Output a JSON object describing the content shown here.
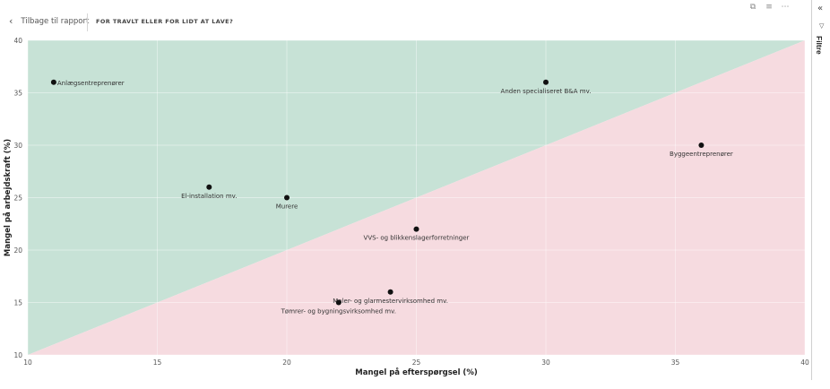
{
  "nav": {
    "back_label": "Tilbage til rapport",
    "page_title": "FOR TRAVLT ELLER FOR LIDT AT LAVE?"
  },
  "visual_header": {
    "icons": [
      "copy-icon",
      "filter-icon",
      "more-options-icon"
    ]
  },
  "filter_pane": {
    "label": "Filtre",
    "collapse_icon": "double-chevron-icon",
    "funnel_icon": "funnel-icon"
  },
  "colors": {
    "upper_region": "#c7e2d6",
    "lower_region": "#f6dbe0",
    "point": "#111111"
  },
  "chart_data": {
    "type": "scatter",
    "title": "",
    "xlabel": "Mangel på efterspørgsel (%)",
    "ylabel": "Mangel på arbejdskraft (%)",
    "xlim": [
      10,
      40
    ],
    "ylim": [
      10,
      40
    ],
    "xticks": [
      10,
      15,
      20,
      25,
      30,
      35,
      40
    ],
    "yticks": [
      10,
      15,
      20,
      25,
      30,
      35,
      40
    ],
    "grid": true,
    "diagonal_split": true,
    "points": [
      {
        "label": "Anlægsentreprenører",
        "x": 11,
        "y": 36,
        "pos": "right"
      },
      {
        "label": "Anden specialiseret B&A mv.",
        "x": 30,
        "y": 36,
        "pos": "below"
      },
      {
        "label": "Byggeentreprenører",
        "x": 36,
        "y": 30,
        "pos": "below"
      },
      {
        "label": "El-installation mv.",
        "x": 17,
        "y": 26,
        "pos": "below"
      },
      {
        "label": "Murere",
        "x": 20,
        "y": 25,
        "pos": "below"
      },
      {
        "label": "VVS- og blikkenslagerforretninger",
        "x": 25,
        "y": 22,
        "pos": "below"
      },
      {
        "label": "Maler- og glarmestervirksomhed mv.",
        "x": 24,
        "y": 16,
        "pos": "below"
      },
      {
        "label": "Tømrer- og bygningsvirksomhed mv.",
        "x": 22,
        "y": 15,
        "pos": "below"
      }
    ]
  }
}
